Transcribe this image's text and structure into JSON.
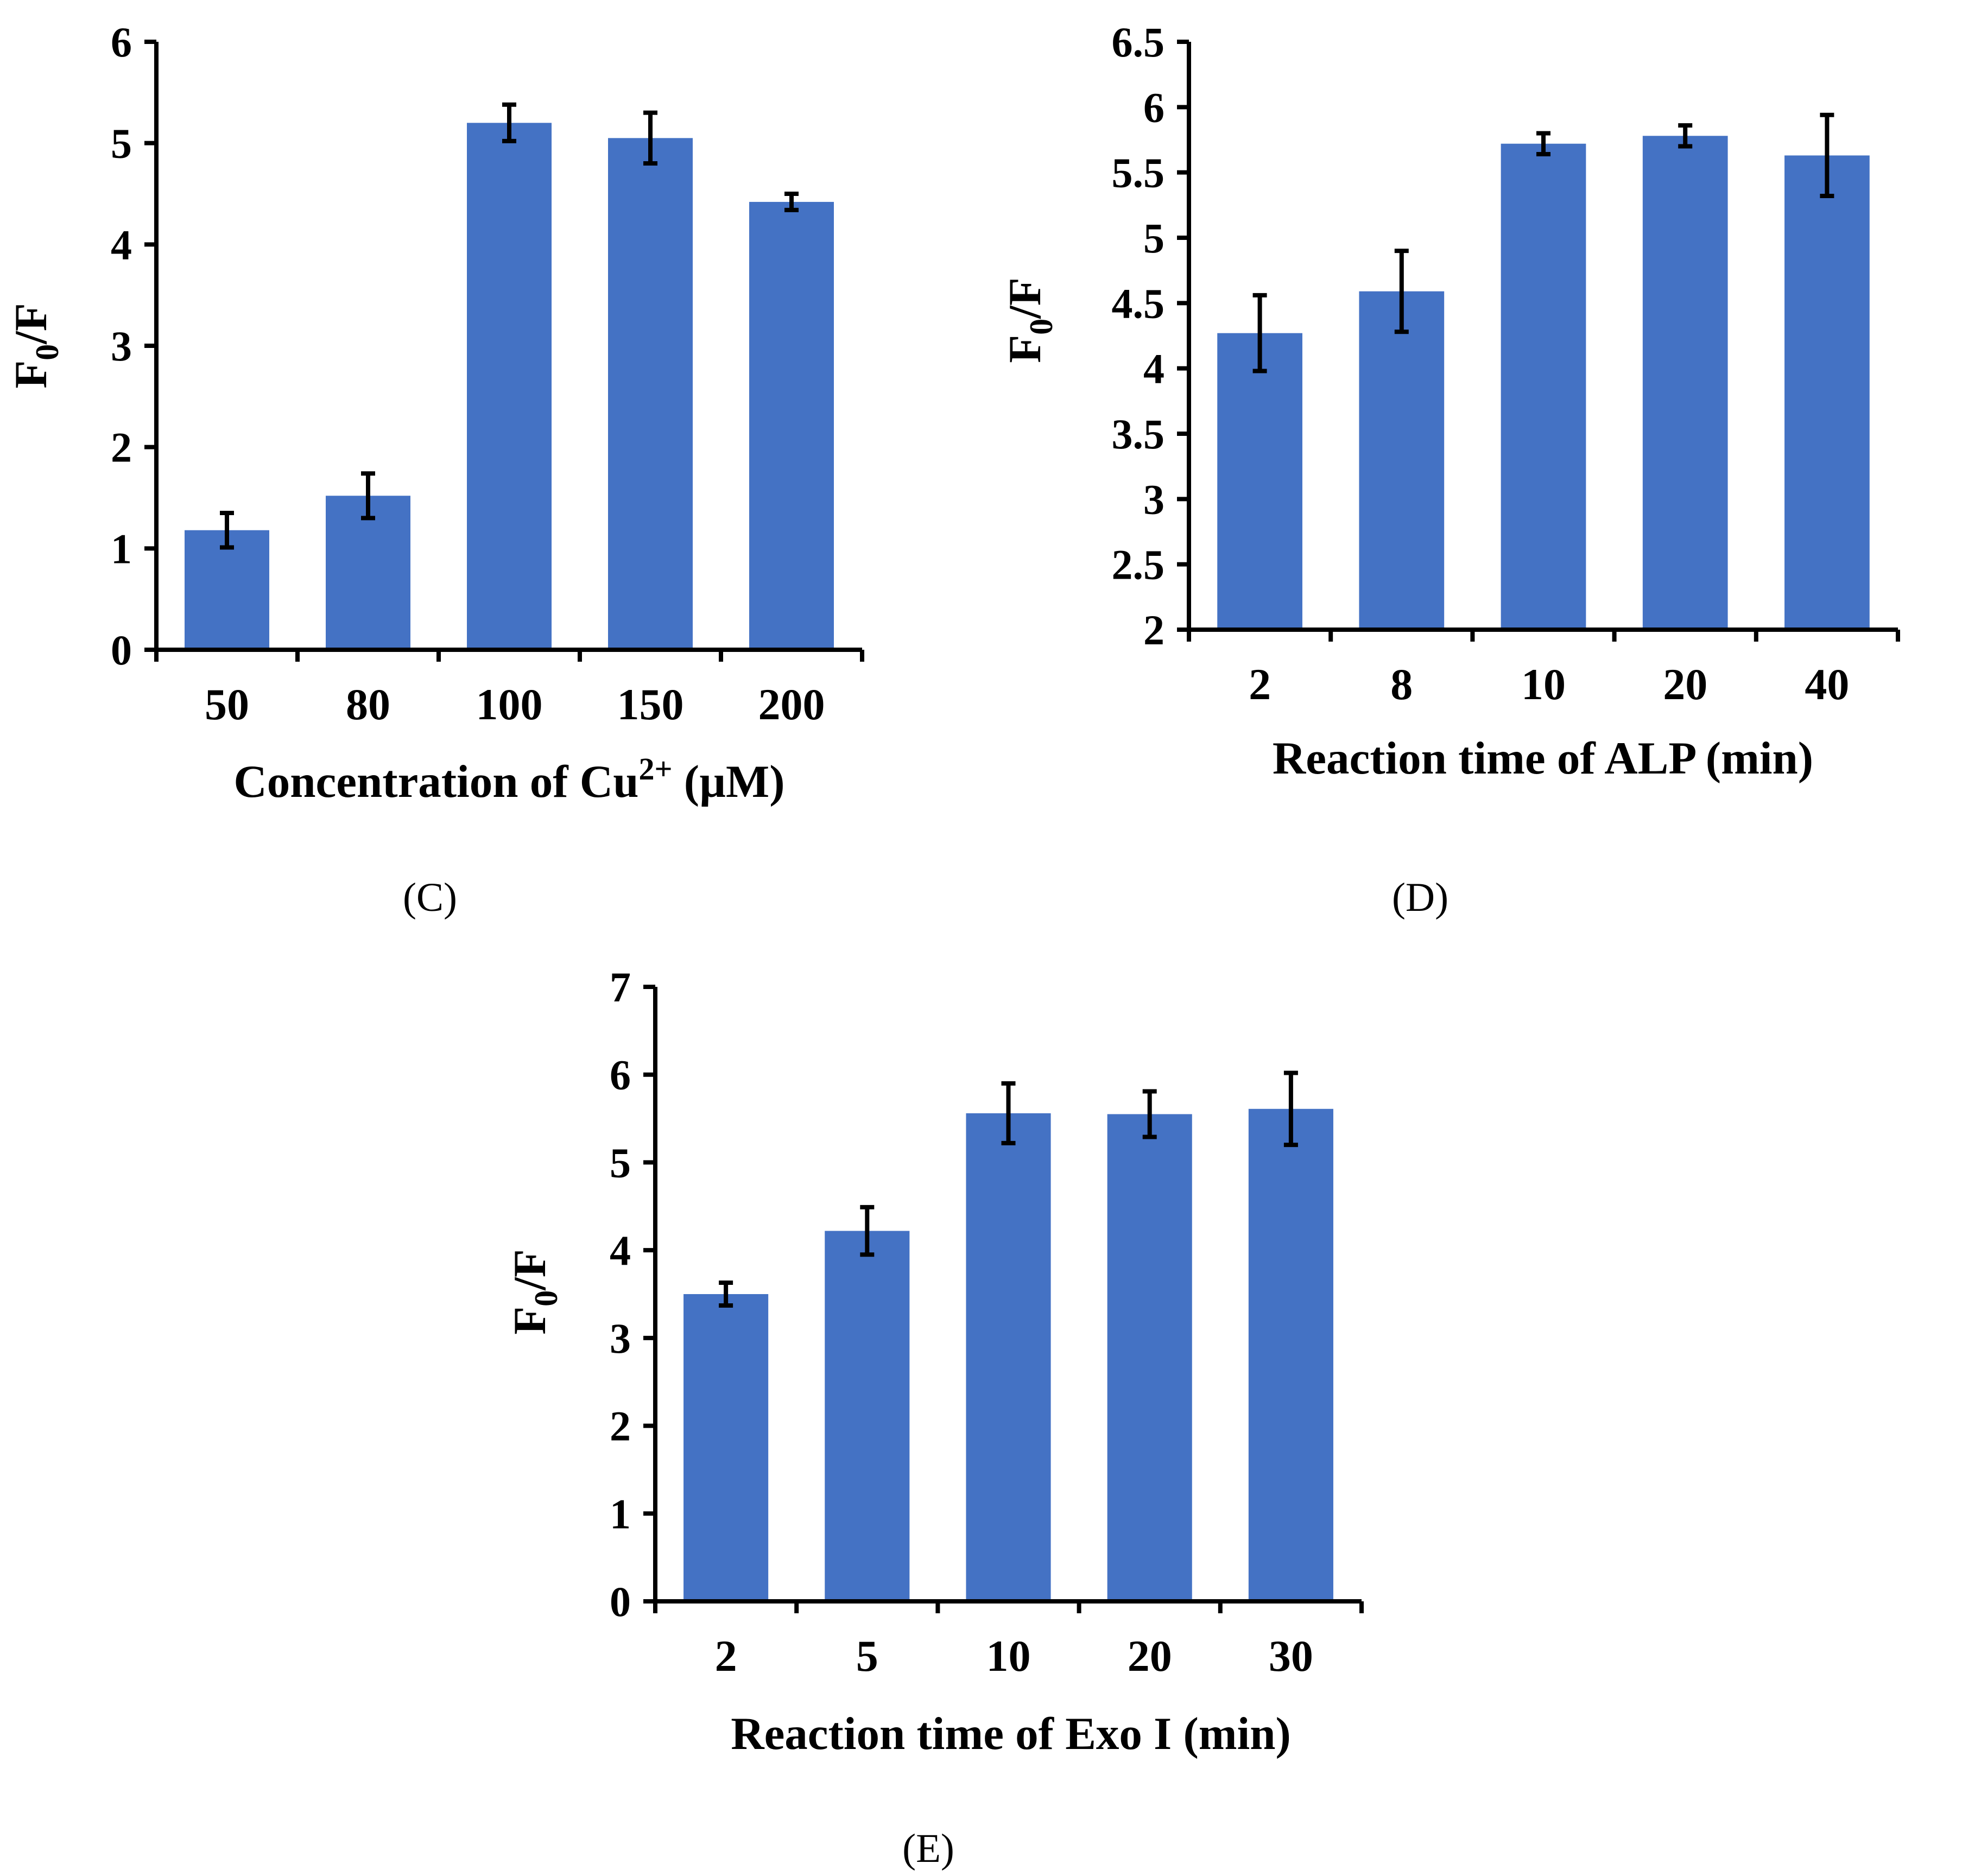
{
  "colors": {
    "bar": "#4472C4",
    "axis": "#000000",
    "error": "#000000"
  },
  "chart_data": [
    {
      "type": "bar",
      "panel": "(C)",
      "title": "",
      "ylabel": "F0/F",
      "ylabel_main": "F",
      "ylabel_sub": "0",
      "ylabel_rest": "/F",
      "xlabel": "Concentration of Cu2+ (µM)",
      "xlabel_pre": "Concentration of Cu",
      "xlabel_sup": "2+",
      "xlabel_post": " (µM)",
      "categories": [
        "50",
        "80",
        "100",
        "150",
        "200"
      ],
      "values": [
        1.18,
        1.52,
        5.2,
        5.05,
        4.42
      ],
      "errors": [
        0.17,
        0.22,
        0.18,
        0.25,
        0.08
      ],
      "ylim": [
        0,
        6
      ],
      "yticks": [
        "0",
        "1",
        "2",
        "3",
        "4",
        "5",
        "6"
      ],
      "grid": false
    },
    {
      "type": "bar",
      "panel": "(D)",
      "title": "",
      "ylabel": "F0/F",
      "ylabel_main": "F",
      "ylabel_sub": "0",
      "ylabel_rest": "/F",
      "xlabel": "Reaction time of ALP (min)",
      "xlabel_pre": "Reaction time of ALP (min)",
      "xlabel_sup": "",
      "xlabel_post": "",
      "categories": [
        "2",
        "8",
        "10",
        "20",
        "40"
      ],
      "values": [
        4.27,
        4.59,
        5.72,
        5.78,
        5.63
      ],
      "errors": [
        0.29,
        0.31,
        0.08,
        0.08,
        0.31
      ],
      "ylim": [
        2,
        6.5
      ],
      "yticks": [
        "2",
        "2.5",
        "3",
        "3.5",
        "4",
        "4.5",
        "5",
        "5.5",
        "6",
        "6.5"
      ],
      "grid": false
    },
    {
      "type": "bar",
      "panel": "(E)",
      "title": "",
      "ylabel": "F0/F",
      "ylabel_main": "F",
      "ylabel_sub": "0",
      "ylabel_rest": "/F",
      "xlabel": "Reaction time of Exo I (min)",
      "xlabel_pre": "Reaction time of Exo I (min)",
      "xlabel_sup": "",
      "xlabel_post": "",
      "categories": [
        "2",
        "5",
        "10",
        "20",
        "30"
      ],
      "values": [
        3.5,
        4.22,
        5.56,
        5.55,
        5.61
      ],
      "errors": [
        0.13,
        0.27,
        0.34,
        0.26,
        0.41
      ],
      "ylim": [
        0,
        7
      ],
      "yticks": [
        "0",
        "1",
        "2",
        "3",
        "4",
        "5",
        "6",
        "7"
      ],
      "grid": false
    }
  ]
}
